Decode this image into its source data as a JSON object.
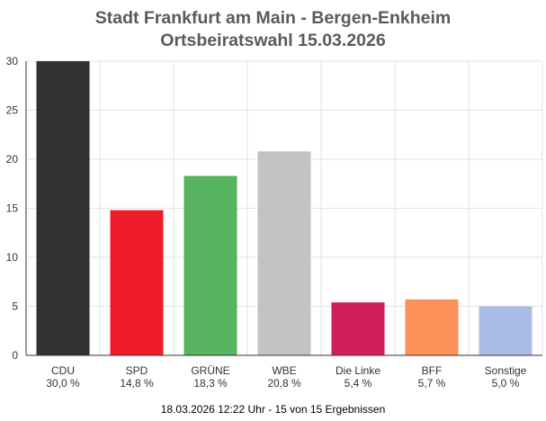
{
  "chart_data": {
    "type": "bar",
    "title": "Stadt Frankfurt am Main - Bergen-Enkheim",
    "subtitle": "Ortsbeiratswahl 15.03.2026",
    "categories": [
      "CDU",
      "SPD",
      "GRÜNE",
      "WBE",
      "Die Linke",
      "BFF",
      "Sonstige"
    ],
    "values": [
      30.0,
      14.8,
      18.3,
      20.8,
      5.4,
      5.7,
      5.0
    ],
    "value_labels": [
      "30,0 %",
      "14,8 %",
      "18,3 %",
      "20,8 %",
      "5,4 %",
      "5,7 %",
      "5,0 %"
    ],
    "colors": [
      "#323132",
      "#ee1c27",
      "#57b45f",
      "#c3c3c3",
      "#d21d5b",
      "#fe9059",
      "#aabde6"
    ],
    "yticks": [
      "0",
      "5",
      "10",
      "15",
      "20",
      "25",
      "30"
    ],
    "ylim": [
      0,
      30
    ],
    "xlabel": "",
    "ylabel": "",
    "grid": true,
    "legend": "none"
  },
  "footer": "18.03.2026 12:22 Uhr - 15 von 15 Ergebnissen"
}
